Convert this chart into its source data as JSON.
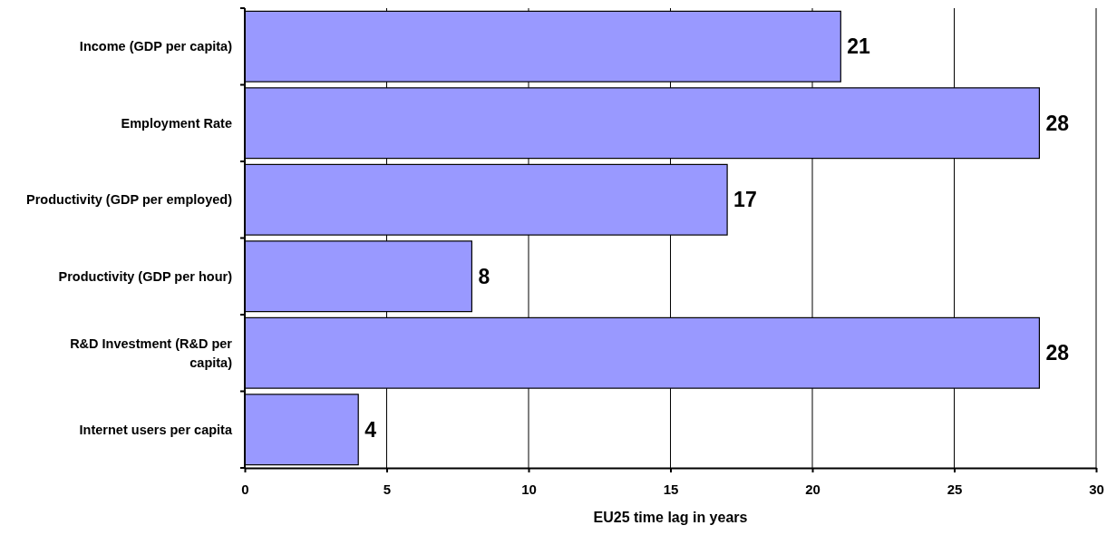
{
  "chart_data": {
    "type": "bar",
    "orientation": "horizontal",
    "xlabel": "EU25 time lag in years",
    "categories": [
      "Income (GDP per capita)",
      "Employment Rate",
      "Productivity (GDP per employed)",
      "Productivity (GDP per hour)",
      "R&D Investment (R&D per capita)",
      "Internet users per capita"
    ],
    "values": [
      21,
      28,
      17,
      8,
      28,
      4
    ],
    "color": "#9999ff",
    "xlim": [
      0,
      30
    ],
    "xticks": [
      0,
      5,
      10,
      15,
      20,
      25,
      30
    ],
    "grid": "x",
    "data_labels": true
  }
}
